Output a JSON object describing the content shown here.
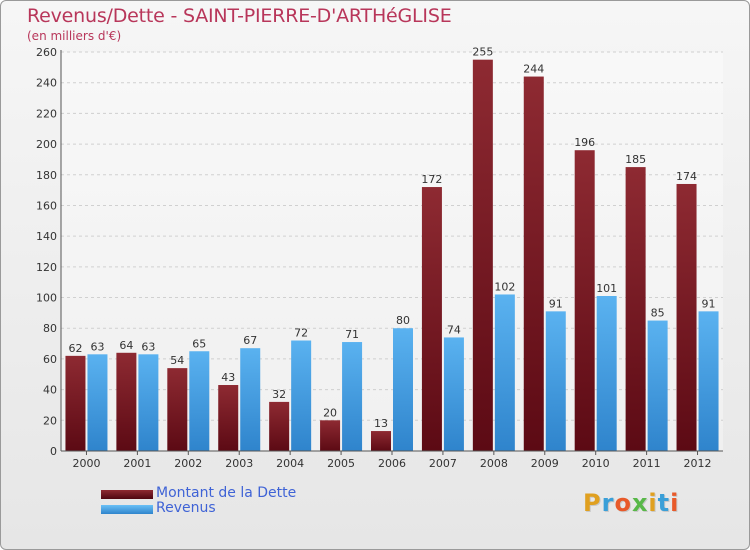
{
  "header": {
    "title": "Revenus/Dette - SAINT-PIERRE-D'ARTHéGLISE",
    "subtitle": "(en milliers d'€)"
  },
  "chart_data": {
    "type": "bar",
    "title": "Revenus/Dette - SAINT-PIERRE-D'ARTHéGLISE",
    "subtitle": "(en milliers d'€)",
    "xlabel": "",
    "ylabel": "",
    "ylim": [
      0,
      260
    ],
    "yticks": [
      0,
      20,
      40,
      60,
      80,
      100,
      120,
      140,
      160,
      180,
      200,
      220,
      240,
      260
    ],
    "grid": true,
    "categories": [
      "2000",
      "2001",
      "2002",
      "2003",
      "2004",
      "2005",
      "2006",
      "2007",
      "2008",
      "2009",
      "2010",
      "2011",
      "2012"
    ],
    "series": [
      {
        "name": "Montant de la Dette",
        "color": "#7a1f27",
        "values": [
          62,
          64,
          54,
          43,
          32,
          20,
          13,
          172,
          255,
          244,
          196,
          185,
          174
        ]
      },
      {
        "name": "Revenus",
        "color": "#4a9fe0",
        "values": [
          63,
          63,
          65,
          67,
          72,
          71,
          80,
          74,
          102,
          91,
          101,
          85,
          91
        ]
      }
    ],
    "legend_position": "bottom-left"
  },
  "legend": {
    "items": [
      {
        "label": "Montant de la Dette",
        "color": "#6a0f1c"
      },
      {
        "label": "Revenus",
        "color": "#4a9fe0"
      }
    ]
  },
  "logo": {
    "letters": [
      "P",
      "r",
      "o",
      "x",
      "i",
      "t",
      "i"
    ],
    "colors": [
      "#e0a020",
      "#3a9fd8",
      "#e85a2a",
      "#58b848",
      "#e0a020",
      "#3a9fd8",
      "#e85a2a"
    ]
  }
}
